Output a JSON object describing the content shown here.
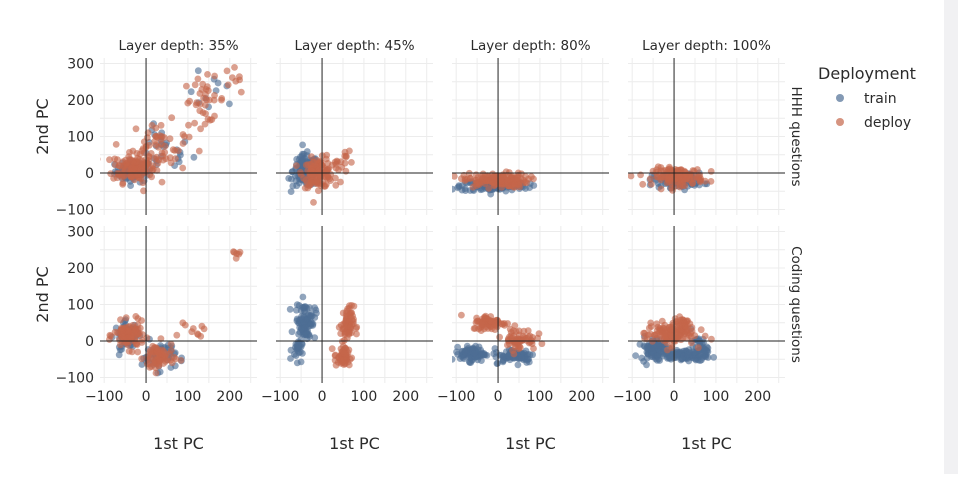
{
  "chart_data": {
    "type": "scatter",
    "columns": [
      "Layer depth: 35%",
      "Layer depth: 45%",
      "Layer depth: 80%",
      "Layer depth: 100%"
    ],
    "rows": [
      "HHH questions",
      "Coding questions"
    ],
    "xlabel": "1st PC",
    "ylabel": "2nd PC",
    "xlim": [
      -110,
      265
    ],
    "ylim": [
      -115,
      315
    ],
    "x_ticks": [
      -100,
      0,
      100,
      200
    ],
    "y_ticks": [
      -100,
      0,
      100,
      200,
      300
    ],
    "x_tick_labels": [
      "−100",
      "0",
      "100",
      "200"
    ],
    "y_tick_labels": [
      "−100",
      "0",
      "100",
      "200",
      "300"
    ],
    "legend": {
      "title": "Deployment",
      "entries": [
        {
          "label": "train",
          "color": "#4e6e94"
        },
        {
          "label": "deploy",
          "color": "#c5664a"
        }
      ]
    },
    "series": [
      {
        "name": "train",
        "color": "#4e6e94"
      },
      {
        "name": "deploy",
        "color": "#c5664a"
      }
    ],
    "panels": [
      {
        "row": 0,
        "col": 0,
        "clusters": [
          {
            "series": "train",
            "cx": -30,
            "cy": 5,
            "sx": 22,
            "sy": 15,
            "n": 70
          },
          {
            "series": "train",
            "cx": 40,
            "cy": 60,
            "sx": 35,
            "sy": 30,
            "n": 25
          },
          {
            "series": "train",
            "cx": 160,
            "cy": 215,
            "sx": 30,
            "sy": 30,
            "n": 10
          },
          {
            "series": "deploy",
            "cx": -30,
            "cy": 15,
            "sx": 25,
            "sy": 20,
            "n": 110
          },
          {
            "series": "deploy",
            "cx": 30,
            "cy": 70,
            "sx": 35,
            "sy": 35,
            "n": 60
          },
          {
            "series": "deploy",
            "cx": 140,
            "cy": 200,
            "sx": 25,
            "sy": 30,
            "n": 35
          },
          {
            "series": "deploy",
            "cx": 205,
            "cy": 260,
            "sx": 10,
            "sy": 15,
            "n": 8
          }
        ]
      },
      {
        "row": 0,
        "col": 1,
        "clusters": [
          {
            "series": "train",
            "cx": -40,
            "cy": 5,
            "sx": 15,
            "sy": 22,
            "n": 130
          },
          {
            "series": "deploy",
            "cx": -10,
            "cy": 0,
            "sx": 18,
            "sy": 20,
            "n": 110
          },
          {
            "series": "deploy",
            "cx": 35,
            "cy": 20,
            "sx": 15,
            "sy": 20,
            "n": 15
          },
          {
            "series": "deploy",
            "cx": 55,
            "cy": 50,
            "sx": 5,
            "sy": 5,
            "n": 4
          }
        ]
      },
      {
        "row": 0,
        "col": 2,
        "clusters": [
          {
            "series": "train",
            "cx": -10,
            "cy": -35,
            "sx": 40,
            "sy": 8,
            "n": 140
          },
          {
            "series": "deploy",
            "cx": -5,
            "cy": -20,
            "sx": 38,
            "sy": 10,
            "n": 140
          }
        ]
      },
      {
        "row": 0,
        "col": 3,
        "clusters": [
          {
            "series": "train",
            "cx": 10,
            "cy": -20,
            "sx": 30,
            "sy": 10,
            "n": 110
          },
          {
            "series": "deploy",
            "cx": 10,
            "cy": -10,
            "sx": 30,
            "sy": 12,
            "n": 130
          }
        ]
      },
      {
        "row": 1,
        "col": 0,
        "clusters": [
          {
            "series": "train",
            "cx": -45,
            "cy": 15,
            "sx": 15,
            "sy": 18,
            "n": 60
          },
          {
            "series": "train",
            "cx": 30,
            "cy": -40,
            "sx": 20,
            "sy": 20,
            "n": 50
          },
          {
            "series": "deploy",
            "cx": -40,
            "cy": 15,
            "sx": 18,
            "sy": 18,
            "n": 90
          },
          {
            "series": "deploy",
            "cx": 30,
            "cy": -45,
            "sx": 18,
            "sy": 20,
            "n": 70
          },
          {
            "series": "deploy",
            "cx": 110,
            "cy": 25,
            "sx": 15,
            "sy": 10,
            "n": 10
          },
          {
            "series": "deploy",
            "cx": 215,
            "cy": 240,
            "sx": 5,
            "sy": 6,
            "n": 6
          }
        ]
      },
      {
        "row": 1,
        "col": 1,
        "clusters": [
          {
            "series": "train",
            "cx": -40,
            "cy": 55,
            "sx": 12,
            "sy": 25,
            "n": 90
          },
          {
            "series": "train",
            "cx": -60,
            "cy": -25,
            "sx": 6,
            "sy": 15,
            "n": 25
          },
          {
            "series": "deploy",
            "cx": 60,
            "cy": 45,
            "sx": 8,
            "sy": 25,
            "n": 60
          },
          {
            "series": "deploy",
            "cx": 50,
            "cy": -45,
            "sx": 10,
            "sy": 15,
            "n": 50
          }
        ]
      },
      {
        "row": 1,
        "col": 2,
        "clusters": [
          {
            "series": "train",
            "cx": -60,
            "cy": -35,
            "sx": 15,
            "sy": 10,
            "n": 90
          },
          {
            "series": "train",
            "cx": 40,
            "cy": -40,
            "sx": 25,
            "sy": 10,
            "n": 80
          },
          {
            "series": "deploy",
            "cx": -20,
            "cy": 50,
            "sx": 20,
            "sy": 10,
            "n": 70
          },
          {
            "series": "deploy",
            "cx": 50,
            "cy": 5,
            "sx": 20,
            "sy": 15,
            "n": 60
          }
        ]
      },
      {
        "row": 1,
        "col": 3,
        "clusters": [
          {
            "series": "train",
            "cx": -50,
            "cy": -20,
            "sx": 15,
            "sy": 15,
            "n": 80
          },
          {
            "series": "train",
            "cx": 20,
            "cy": -40,
            "sx": 30,
            "sy": 8,
            "n": 90
          },
          {
            "series": "train",
            "cx": 60,
            "cy": -20,
            "sx": 10,
            "sy": 15,
            "n": 40
          },
          {
            "series": "deploy",
            "cx": -10,
            "cy": 20,
            "sx": 30,
            "sy": 15,
            "n": 110
          },
          {
            "series": "deploy",
            "cx": 20,
            "cy": 50,
            "sx": 10,
            "sy": 8,
            "n": 30
          }
        ]
      }
    ]
  }
}
